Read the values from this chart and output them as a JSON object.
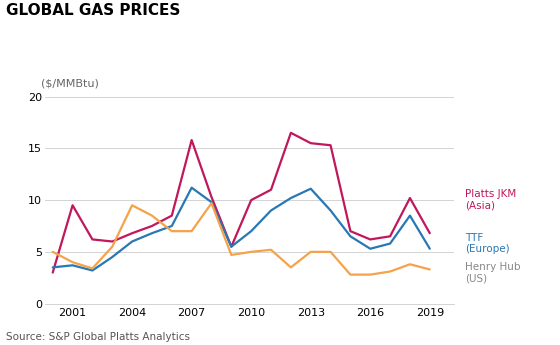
{
  "title": "GLOBAL GAS PRICES",
  "ylabel": "(â¢/MMBtu)",
  "ylabel_text": "($/MMBtu)",
  "source": "Source: S&P Global Platts Analytics",
  "years": [
    2000,
    2001,
    2002,
    2003,
    2004,
    2005,
    2006,
    2007,
    2008,
    2009,
    2010,
    2011,
    2012,
    2013,
    2014,
    2015,
    2016,
    2017,
    2018,
    2019
  ],
  "platts_jkm": [
    3.0,
    9.5,
    6.2,
    6.0,
    6.8,
    7.5,
    8.5,
    15.8,
    10.3,
    5.5,
    10.0,
    11.0,
    16.5,
    15.5,
    15.3,
    7.0,
    6.2,
    6.5,
    10.2,
    6.8
  ],
  "ttf": [
    3.5,
    3.7,
    3.2,
    4.5,
    6.0,
    6.8,
    7.5,
    11.2,
    9.8,
    5.5,
    7.0,
    9.0,
    10.2,
    11.1,
    9.0,
    6.5,
    5.3,
    5.8,
    8.5,
    5.3
  ],
  "henry_hub": [
    5.0,
    4.0,
    3.4,
    5.5,
    9.5,
    8.5,
    7.0,
    7.0,
    9.7,
    4.7,
    5.0,
    5.2,
    3.5,
    5.0,
    5.0,
    2.8,
    2.8,
    3.1,
    3.8,
    3.3
  ],
  "platts_color": "#c0175d",
  "ttf_color": "#2878b5",
  "henry_hub_color": "#f5a24b",
  "ylim": [
    0,
    20
  ],
  "yticks": [
    0,
    5,
    10,
    15,
    20
  ],
  "xticks": [
    2001,
    2004,
    2007,
    2010,
    2013,
    2016,
    2019
  ],
  "title_fontsize": 11,
  "tick_fontsize": 8,
  "source_fontsize": 7.5,
  "legend_fontsize": 7.5,
  "line_width": 1.6
}
